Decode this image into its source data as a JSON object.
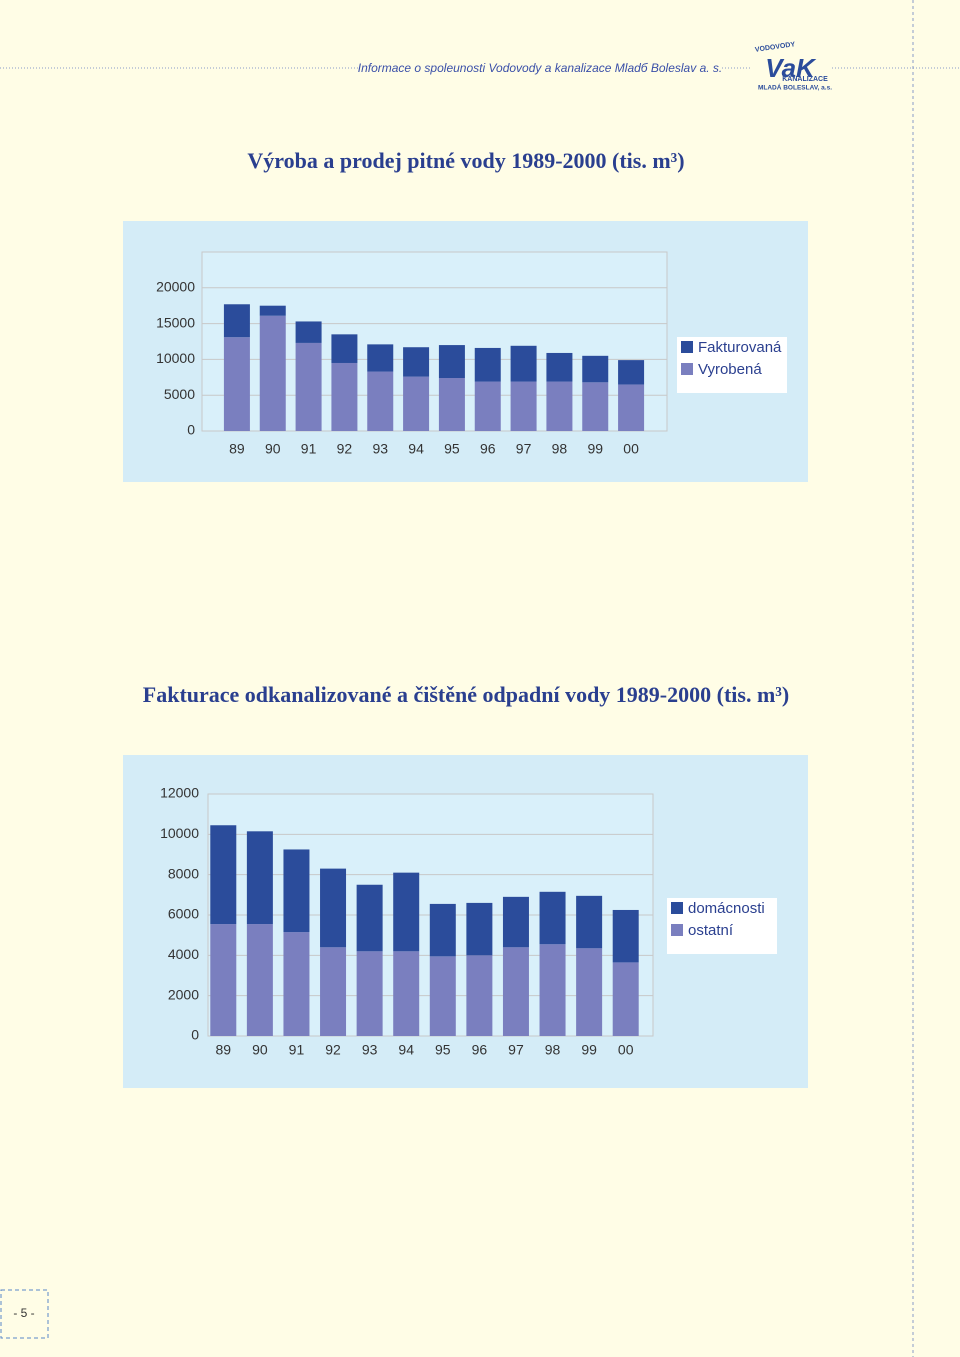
{
  "header": {
    "text": "Informace o spoleunosti Vodovody a kanalizace Mladб Boleslav a. s.",
    "logo": {
      "top": "VODOVODY",
      "mark": "VaK",
      "middle": "KANALIZACE",
      "bottom": "MLADÁ BOLESLAV, a.s."
    }
  },
  "chart_data": [
    {
      "type": "bar",
      "stacked": true,
      "title": "Výroba a prodej pitné vody 1989-2000 (tis. m³)",
      "categories": [
        "89",
        "90",
        "91",
        "92",
        "93",
        "94",
        "95",
        "96",
        "97",
        "98",
        "99",
        "00"
      ],
      "series": [
        {
          "name": "Fakturovaná",
          "color": "#2b4c9b",
          "values": [
            4600,
            1400,
            3000,
            4000,
            3800,
            4100,
            4600,
            4700,
            5000,
            4000,
            3700,
            3400
          ]
        },
        {
          "name": "Vyrobená",
          "color": "#7a7fbf",
          "values": [
            13100,
            16100,
            12300,
            9500,
            8300,
            7600,
            7400,
            6900,
            6900,
            6900,
            6800,
            6500
          ]
        }
      ],
      "ylim": [
        0,
        25000
      ],
      "yticks": [
        0,
        5000,
        10000,
        15000,
        20000
      ],
      "grid": true,
      "legend": "right"
    },
    {
      "type": "bar",
      "stacked": true,
      "title": "Fakturace odkanalizované a čištěné odpadní vody 1989-2000 (tis. m³)",
      "categories": [
        "89",
        "90",
        "91",
        "92",
        "93",
        "94",
        "95",
        "96",
        "97",
        "98",
        "99",
        "00"
      ],
      "series": [
        {
          "name": "domácnosti",
          "color": "#2b4c9b",
          "values": [
            4900,
            4600,
            4100,
            3900,
            3300,
            3900,
            2600,
            2600,
            2500,
            2600,
            2600,
            2600
          ]
        },
        {
          "name": "ostatní",
          "color": "#7a7fbf",
          "values": [
            5550,
            5550,
            5150,
            4400,
            4200,
            4200,
            3950,
            4000,
            4400,
            4550,
            4350,
            3650
          ]
        }
      ],
      "ylim": [
        0,
        12000
      ],
      "yticks": [
        0,
        2000,
        4000,
        6000,
        8000,
        10000,
        12000
      ],
      "grid": true,
      "legend": "right"
    }
  ],
  "page_number": "- 5 -"
}
